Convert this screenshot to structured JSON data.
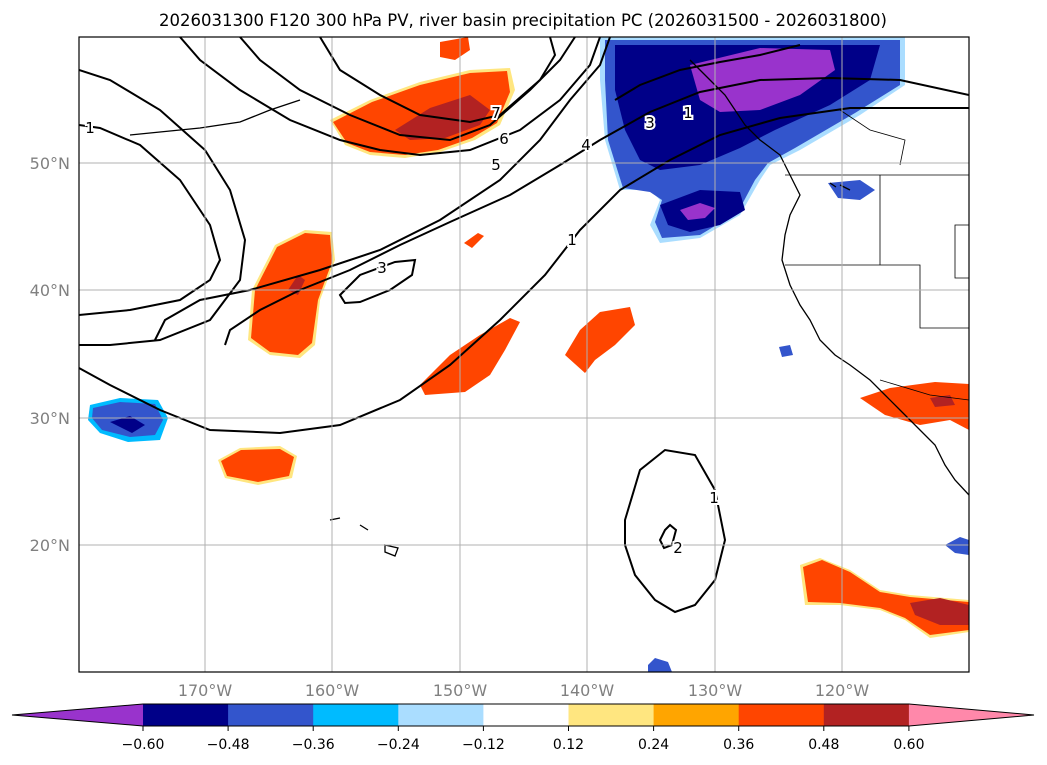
{
  "title": "2026031300 F120 300 hPa PV, river basin precipitation PC (2026031500 - 2026031800)",
  "map": {
    "lat_labels": [
      "50°N",
      "40°N",
      "30°N",
      "20°N"
    ],
    "lon_labels": [
      "170°W",
      "160°W",
      "150°W",
      "140°W",
      "130°W",
      "120°W"
    ],
    "contour_labels": [
      "1",
      "3",
      "4",
      "5",
      "6",
      "7",
      "3",
      "1",
      "2",
      "1",
      "1"
    ]
  },
  "colorbar": {
    "ticks": [
      "−0.60",
      "−0.48",
      "−0.36",
      "−0.24",
      "−0.12",
      "0.12",
      "0.24",
      "0.36",
      "0.48",
      "0.60"
    ],
    "colors": [
      "#9933cc",
      "#000088",
      "#3355cc",
      "#00bbff",
      "#aaddff",
      "#ffffff",
      "#ffe680",
      "#ffa500",
      "#ff4500",
      "#b22222",
      "#ff88aa"
    ]
  }
}
